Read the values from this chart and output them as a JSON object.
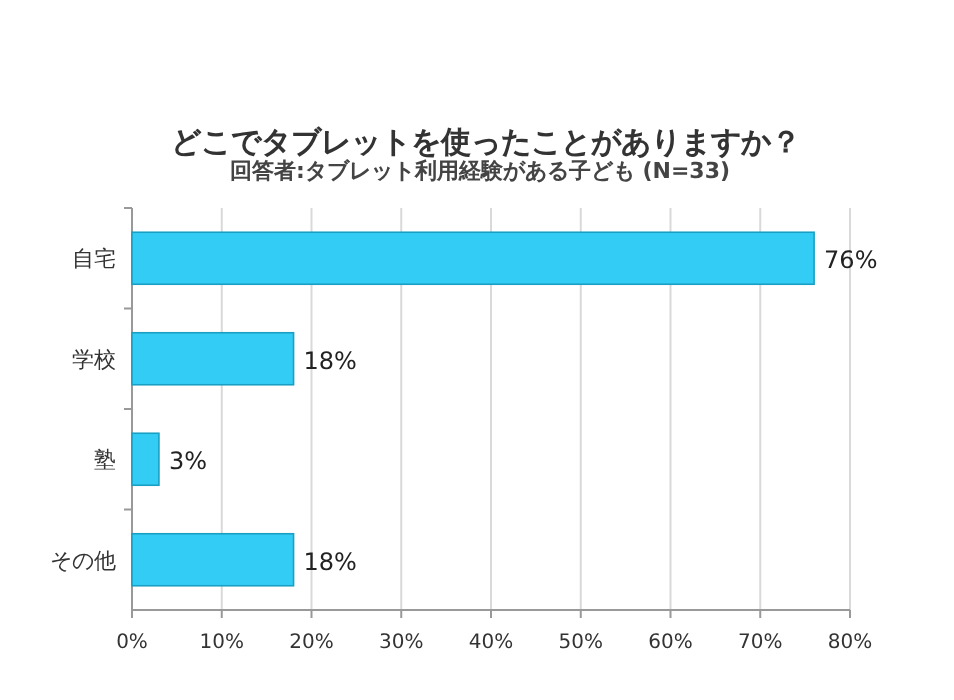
{
  "chart_data": {
    "type": "bar",
    "orientation": "horizontal",
    "title": "どこでタブレットを使ったことがありますか？",
    "subtitle": "回答者:タブレット利用経験がある子ども (N=33)",
    "categories": [
      "自宅",
      "学校",
      "塾",
      "その他"
    ],
    "values": [
      76,
      18,
      3,
      18
    ],
    "value_labels": [
      "76%",
      "18%",
      "3%",
      "18%"
    ],
    "color": "#33ccf5",
    "xlim": [
      0,
      80
    ],
    "xticks": [
      {
        "value": 0,
        "label": "0%"
      },
      {
        "value": 10,
        "label": "10%"
      },
      {
        "value": 20,
        "label": "20%"
      },
      {
        "value": 30,
        "label": "30%"
      },
      {
        "value": 40,
        "label": "40%"
      },
      {
        "value": 50,
        "label": "50%"
      },
      {
        "value": 60,
        "label": "60%"
      },
      {
        "value": 70,
        "label": "70%"
      },
      {
        "value": 80,
        "label": "80%"
      }
    ],
    "grid": "x"
  }
}
